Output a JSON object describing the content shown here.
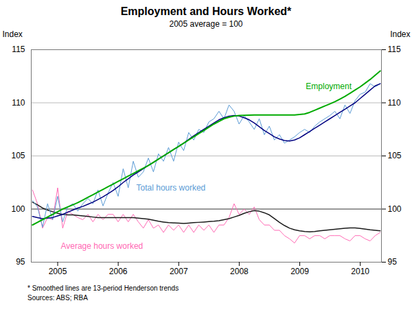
{
  "chart_data": {
    "type": "line",
    "title": "Employment and Hours Worked*",
    "subtitle": "2005 average = 100",
    "ylabel": "Index",
    "y2label": "Index",
    "footnote": "*    Smoothed lines are 13-period Henderson trends",
    "source": "Sources: ABS; RBA",
    "xlim": [
      2004.563,
      2010.35
    ],
    "xticks": [
      2005,
      2006,
      2007,
      2008,
      2009,
      2010
    ],
    "ylim": [
      95,
      115
    ],
    "yticks": [
      95,
      100,
      105,
      110,
      115
    ],
    "grid": true,
    "reference_y": 100,
    "x": [
      2004.583,
      2004.6663,
      2004.7496,
      2004.8329,
      2004.9162,
      2004.9994,
      2005.0827,
      2005.166,
      2005.2493,
      2005.3326,
      2005.4159,
      2005.4992,
      2005.5825,
      2005.6658,
      2005.7491,
      2005.8323,
      2005.9156,
      2005.9989,
      2006.0822,
      2006.1655,
      2006.2488,
      2006.3321,
      2006.4154,
      2006.4987,
      2006.582,
      2006.6652,
      2006.7485,
      2006.8318,
      2006.9151,
      2006.9984,
      2007.0817,
      2007.165,
      2007.2483,
      2007.3316,
      2007.4149,
      2007.4981,
      2007.5814,
      2007.6647,
      2007.748,
      2007.8313,
      2007.9146,
      2007.9979,
      2008.0812,
      2008.1645,
      2008.2478,
      2008.331,
      2008.4143,
      2008.4976,
      2008.5809,
      2008.6642,
      2008.7475,
      2008.8308,
      2008.9141,
      2008.9974,
      2009.0807,
      2009.1639,
      2009.2472,
      2009.3305,
      2009.4138,
      2009.4971,
      2009.5804,
      2009.6637,
      2009.747,
      2009.8303,
      2009.9136,
      2009.9968,
      2010.0801,
      2010.1634,
      2010.2467,
      2010.33
    ],
    "series": [
      {
        "color": "#ff69b4",
        "values": [
          101.8,
          100.5,
          98.2,
          99.2,
          99.0,
          102.0,
          98.2,
          99.8,
          99.5,
          99.2,
          99.0,
          99.5,
          98.8,
          99.5,
          99.0,
          99.5,
          99.5,
          98.8,
          99.5,
          98.8,
          99.5,
          98.8,
          98.2,
          99.0,
          98.2,
          98.5,
          97.8,
          98.5,
          98.0,
          98.5,
          97.8,
          98.5,
          97.8,
          98.5,
          98.0,
          98.5,
          97.8,
          98.5,
          98.5,
          99.2,
          100.5,
          99.5,
          100.0,
          99.5,
          100.2,
          99.0,
          98.5,
          98.5,
          98.0,
          98.0,
          97.5,
          97.2,
          96.8,
          97.5,
          97.5,
          97.2,
          97.5,
          97.5,
          97.2,
          97.5,
          97.5,
          97.5,
          97.2,
          97.0,
          97.5,
          97.5,
          97.2,
          97.0,
          97.5,
          97.8
        ]
      },
      {
        "color": "#1a1a1a",
        "values": [
          100.65,
          100.4,
          100.1,
          99.9,
          99.75,
          99.6,
          99.5,
          99.45,
          99.45,
          99.4,
          99.35,
          99.3,
          99.25,
          99.2,
          99.2,
          99.2,
          99.2,
          99.2,
          99.2,
          99.2,
          99.2,
          99.15,
          99.1,
          99.05,
          98.95,
          98.85,
          98.78,
          98.72,
          98.7,
          98.68,
          98.65,
          98.68,
          98.72,
          98.75,
          98.78,
          98.82,
          98.85,
          98.9,
          99.0,
          99.1,
          99.25,
          99.4,
          99.6,
          99.75,
          99.85,
          99.8,
          99.65,
          99.45,
          99.1,
          98.75,
          98.45,
          98.2,
          98.05,
          97.95,
          97.88,
          97.85,
          97.88,
          97.95,
          98.0,
          98.05,
          98.1,
          98.15,
          98.2,
          98.22,
          98.22,
          98.18,
          98.12,
          98.05,
          98.0,
          97.95
        ]
      },
      {
        "color": "#5b9bd5",
        "values": [
          100.8,
          100.2,
          98.3,
          100.5,
          99.0,
          101.2,
          98.8,
          100.2,
          100.5,
          99.8,
          100.5,
          101.0,
          100.5,
          101.8,
          100.3,
          101.5,
          102.5,
          101.2,
          103.8,
          102.0,
          104.5,
          103.0,
          103.5,
          104.8,
          103.5,
          105.2,
          104.5,
          105.8,
          104.5,
          106.3,
          105.5,
          107.2,
          106.5,
          107.5,
          107.2,
          108.2,
          108.5,
          109.2,
          108.5,
          109.8,
          109.2,
          108.0,
          108.8,
          108.2,
          107.5,
          108.5,
          107.0,
          107.8,
          106.5,
          107.0,
          106.2,
          106.5,
          106.8,
          107.2,
          107.5,
          107.2,
          107.8,
          108.2,
          108.5,
          108.8,
          109.2,
          108.5,
          109.8,
          109.0,
          110.2,
          110.8,
          111.0,
          111.8,
          111.5,
          111.8
        ]
      },
      {
        "color": "#000080",
        "values": [
          99.3,
          99.2,
          99.1,
          99.15,
          99.2,
          99.35,
          99.5,
          99.7,
          99.9,
          100.1,
          100.25,
          100.45,
          100.65,
          100.9,
          101.15,
          101.45,
          101.75,
          102.1,
          102.5,
          102.85,
          103.2,
          103.5,
          103.8,
          104.1,
          104.4,
          104.7,
          105.0,
          105.3,
          105.6,
          105.9,
          106.2,
          106.55,
          106.9,
          107.2,
          107.5,
          107.8,
          108.1,
          108.4,
          108.6,
          108.75,
          108.8,
          108.75,
          108.6,
          108.4,
          108.1,
          107.75,
          107.4,
          107.1,
          106.8,
          106.6,
          106.45,
          106.4,
          106.5,
          106.7,
          107.0,
          107.3,
          107.6,
          107.9,
          108.2,
          108.5,
          108.8,
          109.1,
          109.4,
          109.7,
          110.0,
          110.4,
          110.8,
          111.2,
          111.6,
          111.8
        ]
      },
      {
        "color": "#00aa00",
        "values": [
          98.5,
          98.75,
          99.0,
          99.25,
          99.5,
          99.75,
          100.0,
          100.2,
          100.4,
          100.6,
          100.85,
          101.1,
          101.35,
          101.6,
          101.85,
          102.1,
          102.35,
          102.6,
          102.85,
          103.1,
          103.35,
          103.6,
          103.85,
          104.1,
          104.4,
          104.7,
          105.0,
          105.3,
          105.6,
          105.9,
          106.2,
          106.5,
          106.8,
          107.1,
          107.4,
          107.7,
          108.0,
          108.25,
          108.5,
          108.65,
          108.75,
          108.8,
          108.82,
          108.84,
          108.85,
          108.85,
          108.85,
          108.85,
          108.85,
          108.85,
          108.85,
          108.85,
          108.85,
          108.9,
          108.95,
          109.1,
          109.3,
          109.5,
          109.7,
          109.9,
          110.1,
          110.35,
          110.6,
          110.9,
          111.2,
          111.5,
          111.85,
          112.2,
          112.6,
          113.0
        ]
      }
    ],
    "annotations": [
      {
        "text": "Employment",
        "x": 2009.1,
        "y": 111.3,
        "color": "#00aa00"
      },
      {
        "text": "Total hours worked",
        "x": 2006.3,
        "y": 102.3,
        "color": "#5b9bd5"
      },
      {
        "text": "Average hours worked",
        "x": 2005.05,
        "y": 96.8,
        "color": "#ff69b4"
      }
    ]
  }
}
